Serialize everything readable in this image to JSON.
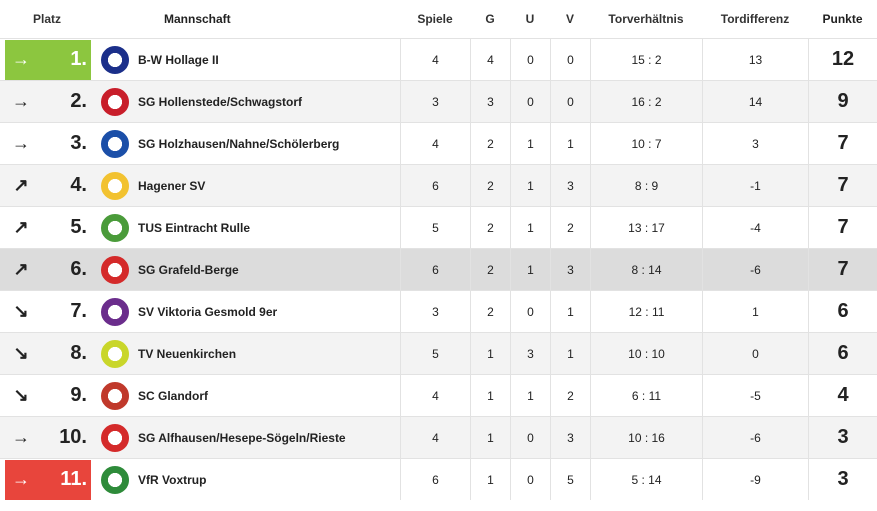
{
  "headers": {
    "platz": "Platz",
    "mannschaft": "Mannschaft",
    "spiele": "Spiele",
    "g": "G",
    "u": "U",
    "v": "V",
    "torverhaeltnis": "Torverhältnis",
    "tordifferenz": "Tordifferenz",
    "punkte": "Punkte"
  },
  "rows": [
    {
      "trend": "→",
      "rank": "1.",
      "team": "B-W Hollage II",
      "spiele": "4",
      "g": "4",
      "u": "0",
      "v": "0",
      "tore": "15 : 2",
      "diff": "13",
      "punkte": "12",
      "logo_icon": "bw-hollage-logo",
      "logo_color": "#1b2f8a"
    },
    {
      "trend": "→",
      "rank": "2.",
      "team": "SG Hollenstede/Schwagstorf",
      "spiele": "3",
      "g": "3",
      "u": "0",
      "v": "0",
      "tore": "16 : 2",
      "diff": "14",
      "punkte": "9",
      "logo_icon": "hollenstede-logo",
      "logo_color": "#c81e2a"
    },
    {
      "trend": "→",
      "rank": "3.",
      "team": "SG Holzhausen/Nahne/Schölerberg",
      "spiele": "4",
      "g": "2",
      "u": "1",
      "v": "1",
      "tore": "10 : 7",
      "diff": "3",
      "punkte": "7",
      "logo_icon": "holzhausen-logo",
      "logo_color": "#1b4fa8"
    },
    {
      "trend": "↗",
      "rank": "4.",
      "team": "Hagener SV",
      "spiele": "6",
      "g": "2",
      "u": "1",
      "v": "3",
      "tore": "8 : 9",
      "diff": "-1",
      "punkte": "7",
      "logo_icon": "hagener-sv-logo",
      "logo_color": "#f2c230"
    },
    {
      "trend": "↗",
      "rank": "5.",
      "team": "TUS Eintracht Rulle",
      "spiele": "5",
      "g": "2",
      "u": "1",
      "v": "2",
      "tore": "13 : 17",
      "diff": "-4",
      "punkte": "7",
      "logo_icon": "rulle-logo",
      "logo_color": "#4a9b3a"
    },
    {
      "trend": "↗",
      "rank": "6.",
      "team": "SG Grafeld-Berge",
      "spiele": "6",
      "g": "2",
      "u": "1",
      "v": "3",
      "tore": "8 : 14",
      "diff": "-6",
      "punkte": "7",
      "logo_icon": "grafeld-logo",
      "logo_color": "#d42a2a"
    },
    {
      "trend": "↘",
      "rank": "7.",
      "team": "SV Viktoria Gesmold 9er",
      "spiele": "3",
      "g": "2",
      "u": "0",
      "v": "1",
      "tore": "12 : 11",
      "diff": "1",
      "punkte": "6",
      "logo_icon": "viktoria-gesmold-logo",
      "logo_color": "#6b2d8c"
    },
    {
      "trend": "↘",
      "rank": "8.",
      "team": "TV Neuenkirchen",
      "spiele": "5",
      "g": "1",
      "u": "3",
      "v": "1",
      "tore": "10 : 10",
      "diff": "0",
      "punkte": "6",
      "logo_icon": "neuenkirchen-logo",
      "logo_color": "#c9d62a"
    },
    {
      "trend": "↘",
      "rank": "9.",
      "team": "SC Glandorf",
      "spiele": "4",
      "g": "1",
      "u": "1",
      "v": "2",
      "tore": "6 : 11",
      "diff": "-5",
      "punkte": "4",
      "logo_icon": "glandorf-logo",
      "logo_color": "#c0392b"
    },
    {
      "trend": "→",
      "rank": "10.",
      "team": "SG Alfhausen/Hesepe-Sögeln/Rieste",
      "spiele": "4",
      "g": "1",
      "u": "0",
      "v": "3",
      "tore": "10 : 16",
      "diff": "-6",
      "punkte": "3",
      "logo_icon": "alfhausen-logo",
      "logo_color": "#d42a2a"
    },
    {
      "trend": "→",
      "rank": "11.",
      "team": "VfR Voxtrup",
      "spiele": "6",
      "g": "1",
      "u": "0",
      "v": "5",
      "tore": "5 : 14",
      "diff": "-9",
      "punkte": "3",
      "logo_icon": "voxtrup-logo",
      "logo_color": "#2e8b3a"
    }
  ],
  "colors": {
    "promotion": "#8cc63f",
    "relegation": "#e8453c",
    "highlight_row": "#dcdcdc"
  }
}
